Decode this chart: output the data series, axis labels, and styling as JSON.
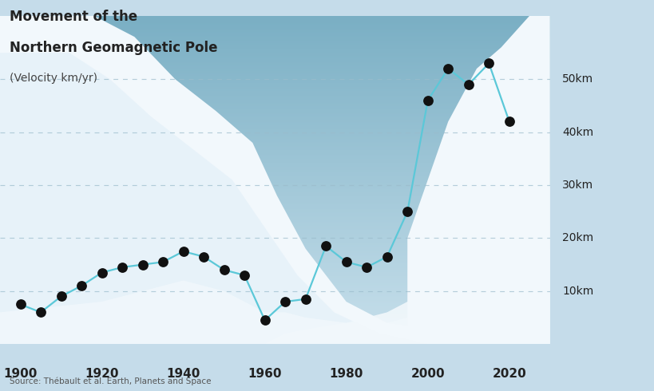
{
  "title_line1": "Movement of the",
  "title_line2": "Northern Geomagnetic Pole",
  "title_line3": "(Velocity km/yr)",
  "source": "Source: Thébault et al. Earth, Planets and Space",
  "years": [
    1900,
    1905,
    1910,
    1915,
    1920,
    1925,
    1930,
    1935,
    1940,
    1945,
    1950,
    1955,
    1960,
    1965,
    1970,
    1975,
    1980,
    1985,
    1990,
    1995,
    2000,
    2005,
    2010,
    2015,
    2020
  ],
  "values": [
    7.5,
    6.0,
    9.0,
    11.0,
    13.5,
    14.5,
    15.0,
    15.5,
    17.5,
    16.5,
    14.0,
    13.0,
    4.5,
    8.0,
    8.5,
    18.5,
    15.5,
    14.5,
    16.5,
    25.0,
    46.0,
    52.0,
    49.0,
    53.0,
    42.0
  ],
  "line_color": "#5bc8d8",
  "dot_color": "#111111",
  "sky_color_top": "#7aafc4",
  "sky_color_mid": "#9dc5d8",
  "sky_color_bot": "#c8e0ec",
  "snow_white": "#f0f6fb",
  "snow_mid": "#ddeef8",
  "grid_color": "#9bbccc",
  "text_color": "#222222",
  "source_color": "#555555",
  "ytick_labels": [
    "10km",
    "20km",
    "30km",
    "40km",
    "50km"
  ],
  "ytick_values": [
    10,
    20,
    30,
    40,
    50
  ],
  "xtick_labels": [
    "1900",
    "1920",
    "1940",
    "1960",
    "1980",
    "2000",
    "2020"
  ],
  "xtick_values": [
    1900,
    1920,
    1940,
    1960,
    1980,
    2000,
    2020
  ],
  "ylim": [
    0,
    62
  ],
  "xlim": [
    1895,
    2030
  ],
  "fig_bg": "#c5dcea"
}
